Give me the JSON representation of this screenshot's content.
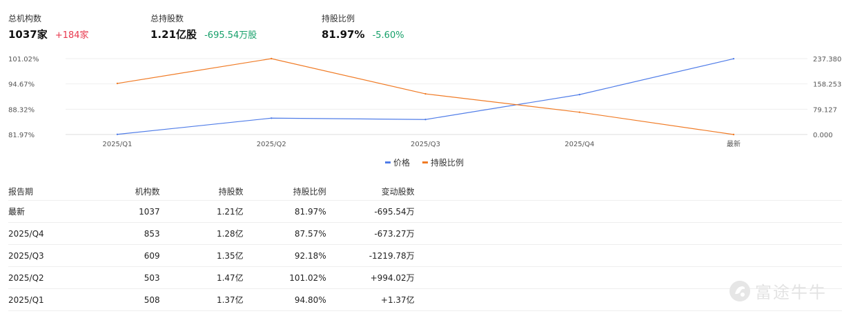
{
  "summary": {
    "institutions": {
      "label": "总机构数",
      "value": "1037家",
      "delta": "+184家",
      "trend": "up"
    },
    "total_shares": {
      "label": "总持股数",
      "value": "1.21亿股",
      "delta": "-695.54万股",
      "trend": "down"
    },
    "holding_ratio": {
      "label": "持股比例",
      "value": "81.97%",
      "delta": "-5.60%",
      "trend": "down"
    }
  },
  "colors": {
    "up": "#e8374c",
    "down": "#16a06a",
    "price": "#4f7ce8",
    "ratio": "#f07a24"
  },
  "chart_data": {
    "type": "line",
    "categories": [
      "2025/Q1",
      "2025/Q2",
      "2025/Q3",
      "2025/Q4",
      "最新"
    ],
    "series": [
      {
        "name": "价格",
        "axis": "right",
        "values": [
          0.5,
          51.2,
          47.0,
          124.9,
          237.0
        ]
      },
      {
        "name": "持股比例",
        "axis": "left",
        "values": [
          94.8,
          101.02,
          92.18,
          87.57,
          81.97
        ]
      }
    ],
    "left_axis": {
      "ticks": [
        "101.02%",
        "94.67%",
        "88.32%",
        "81.97%"
      ],
      "range": [
        81.97,
        101.02
      ]
    },
    "right_axis": {
      "ticks": [
        "237.380",
        "158.253",
        "79.127",
        "0.000"
      ],
      "range": [
        0,
        237.38
      ]
    },
    "legend_position": "bottom-center",
    "grid": true
  },
  "table": {
    "headers": [
      "报告期",
      "机构数",
      "持股数",
      "持股比例",
      "变动股数"
    ],
    "rows": [
      {
        "period": "最新",
        "institutions": "1037",
        "shares": "1.21亿",
        "ratio": "81.97%",
        "change": "-695.54万",
        "trend": "down"
      },
      {
        "period": "2025/Q4",
        "institutions": "853",
        "shares": "1.28亿",
        "ratio": "87.57%",
        "change": "-673.27万",
        "trend": "down"
      },
      {
        "period": "2025/Q3",
        "institutions": "609",
        "shares": "1.35亿",
        "ratio": "92.18%",
        "change": "-1219.78万",
        "trend": "down"
      },
      {
        "period": "2025/Q2",
        "institutions": "503",
        "shares": "1.47亿",
        "ratio": "101.02%",
        "change": "+994.02万",
        "trend": "up"
      },
      {
        "period": "2025/Q1",
        "institutions": "508",
        "shares": "1.37亿",
        "ratio": "94.80%",
        "change": "+1.37亿",
        "trend": "up"
      }
    ]
  },
  "watermark": {
    "text": "富途牛牛",
    "icon": "futu-logo-icon"
  }
}
